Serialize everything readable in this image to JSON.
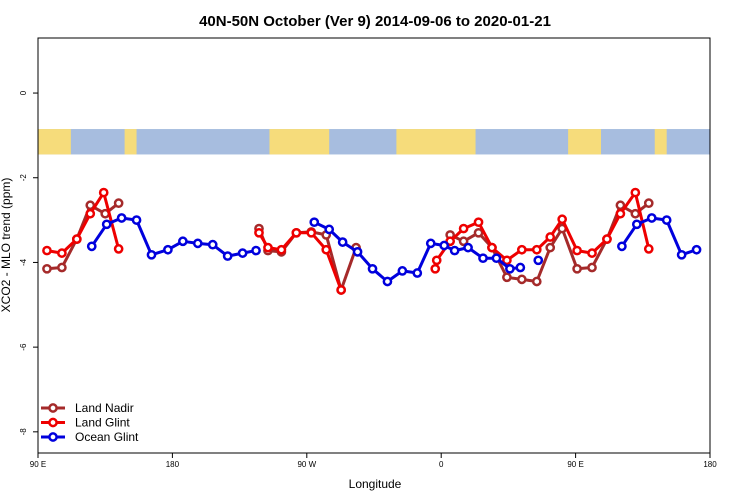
{
  "chart_data": {
    "type": "line",
    "title": "40N-50N October (Ver 9)   2014-09-06 to 2020-01-21",
    "xlabel": "Longitude",
    "ylabel": "XCO2 - MLO trend (ppm)",
    "xlim": [
      90,
      540
    ],
    "ylim": [
      -8.5,
      1.3
    ],
    "x_ticks": [
      {
        "value": 90,
        "label": "90 E"
      },
      {
        "value": 180,
        "label": "180"
      },
      {
        "value": 270,
        "label": "90 W"
      },
      {
        "value": 360,
        "label": "0"
      },
      {
        "value": 450,
        "label": "90 E"
      },
      {
        "value": 540,
        "label": "180"
      }
    ],
    "y_ticks": [
      {
        "value": 0,
        "label": "0"
      },
      {
        "value": -2,
        "label": "-2"
      },
      {
        "value": -4,
        "label": "-4"
      },
      {
        "value": -6,
        "label": "-6"
      },
      {
        "value": -8,
        "label": "-8"
      }
    ],
    "map_band": {
      "y_top": -0.85,
      "y_bottom": -1.45,
      "ocean_color": "#a7bddf",
      "land_color": "#f6dc7b"
    },
    "legend_position": "bottom-left",
    "series": [
      {
        "name": "Land Nadir",
        "color": "#a52a2a",
        "segments": [
          [
            [
              96,
              -4.15
            ],
            [
              106,
              -4.12
            ],
            [
              116,
              -3.45
            ],
            [
              125,
              -2.65
            ],
            [
              135,
              -2.85
            ],
            [
              144,
              -2.6
            ]
          ],
          [
            [
              238,
              -3.2
            ],
            [
              244,
              -3.72
            ],
            [
              253,
              -3.75
            ],
            [
              263,
              -3.3
            ],
            [
              273,
              -3.28
            ],
            [
              283,
              -3.35
            ],
            [
              293,
              -4.65
            ],
            [
              303,
              -3.65
            ]
          ],
          [
            [
              366,
              -3.35
            ],
            [
              375,
              -3.5
            ],
            [
              385,
              -3.3
            ],
            [
              394,
              -3.65
            ],
            [
              404,
              -4.35
            ],
            [
              414,
              -4.4
            ],
            [
              424,
              -4.45
            ],
            [
              433,
              -3.65
            ],
            [
              441,
              -3.2
            ],
            [
              451,
              -4.15
            ],
            [
              461,
              -4.12
            ],
            [
              471,
              -3.45
            ],
            [
              480,
              -2.65
            ],
            [
              490,
              -2.85
            ],
            [
              499,
              -2.6
            ]
          ]
        ]
      },
      {
        "name": "Land Glint",
        "color": "#ee0000",
        "segments": [
          [
            [
              96,
              -3.72
            ],
            [
              106,
              -3.78
            ],
            [
              116,
              -3.45
            ],
            [
              125,
              -2.85
            ],
            [
              134,
              -2.35
            ],
            [
              144,
              -3.68
            ]
          ],
          [
            [
              238,
              -3.3
            ],
            [
              244,
              -3.65
            ],
            [
              253,
              -3.7
            ],
            [
              263,
              -3.3
            ],
            [
              273,
              -3.3
            ],
            [
              283,
              -3.7
            ],
            [
              293,
              -4.65
            ]
          ],
          [
            [
              356,
              -4.15
            ],
            [
              357,
              -3.95
            ],
            [
              366,
              -3.5
            ],
            [
              375,
              -3.2
            ],
            [
              385,
              -3.05
            ],
            [
              394,
              -3.65
            ],
            [
              404,
              -3.95
            ],
            [
              414,
              -3.7
            ],
            [
              424,
              -3.7
            ],
            [
              433,
              -3.4
            ],
            [
              441,
              -2.98
            ],
            [
              451,
              -3.72
            ],
            [
              461,
              -3.78
            ],
            [
              471,
              -3.45
            ],
            [
              480,
              -2.85
            ],
            [
              490,
              -2.35
            ],
            [
              499,
              -3.68
            ]
          ]
        ]
      },
      {
        "name": "Ocean Glint",
        "color": "#0000dd",
        "segments": [
          [
            [
              126,
              -3.62
            ],
            [
              136,
              -3.1
            ],
            [
              146,
              -2.95
            ],
            [
              156,
              -3.0
            ],
            [
              166,
              -3.82
            ],
            [
              177,
              -3.7
            ],
            [
              187,
              -3.5
            ],
            [
              197,
              -3.55
            ],
            [
              207,
              -3.58
            ],
            [
              217,
              -3.85
            ],
            [
              227,
              -3.78
            ],
            [
              236,
              -3.72
            ]
          ],
          [
            [
              275,
              -3.05
            ],
            [
              285,
              -3.22
            ],
            [
              294,
              -3.52
            ],
            [
              304,
              -3.75
            ],
            [
              314,
              -4.15
            ],
            [
              324,
              -4.45
            ],
            [
              334,
              -4.2
            ],
            [
              344,
              -4.25
            ],
            [
              353,
              -3.55
            ],
            [
              362,
              -3.6
            ],
            [
              369,
              -3.72
            ],
            [
              378,
              -3.65
            ],
            [
              388,
              -3.9
            ],
            [
              397,
              -3.9
            ],
            [
              406,
              -4.15
            ],
            [
              413,
              -4.12
            ]
          ],
          [
            [
              425,
              -3.95
            ]
          ],
          [
            [
              481,
              -3.62
            ],
            [
              491,
              -3.1
            ],
            [
              501,
              -2.95
            ],
            [
              511,
              -3.0
            ],
            [
              521,
              -3.82
            ],
            [
              531,
              -3.7
            ]
          ]
        ]
      }
    ]
  }
}
